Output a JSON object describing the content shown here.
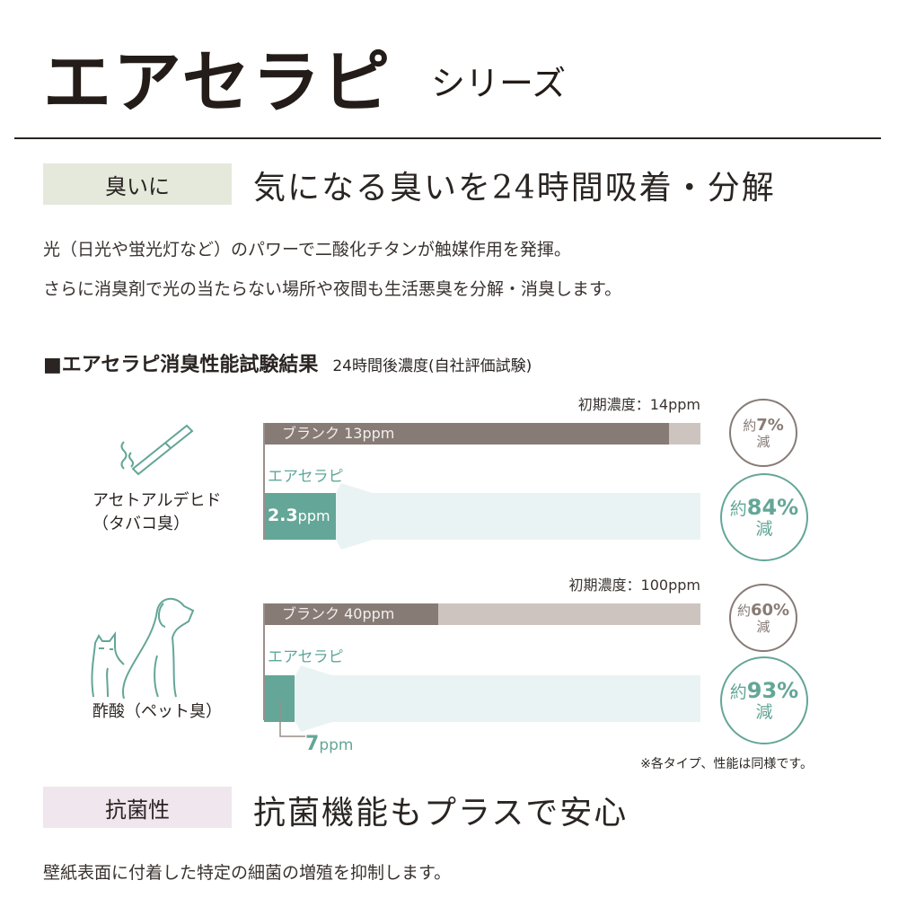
{
  "header": {
    "title": "エアセラピ",
    "subtitle": "シリーズ"
  },
  "odor": {
    "tag": "臭いに",
    "heading": "気になる臭いを24時間吸着・分解",
    "lines": [
      "光（日光や蛍光灯など）のパワーで二酸化チタンが触媒作用を発揮。",
      "さらに消臭剤で光の当たらない場所や夜間も生活悪臭を分解・消臭します。"
    ]
  },
  "test": {
    "title": "■エアセラピ消臭性能試験結果",
    "subtitle": "24時間後濃度(自社評価試験)",
    "note": "※各タイプ、性能は同様です。"
  },
  "chart_data": [
    {
      "type": "bar",
      "category": "アセトアルデヒド",
      "category_sub": "（タバコ臭）",
      "icon": "cigarette-icon",
      "initial_label": "初期濃度：14ppm",
      "initial": 14,
      "series": [
        {
          "name": "ブランク",
          "value": 13,
          "label": "ブランク 13ppm",
          "reduction_prefix": "約",
          "reduction_value": "7%",
          "reduction_suffix": "減"
        },
        {
          "name": "エアセラピ",
          "value": 2.3,
          "label": "2.3",
          "unit": "ppm",
          "reduction_prefix": "約",
          "reduction_value": "84%",
          "reduction_suffix": "減"
        }
      ]
    },
    {
      "type": "bar",
      "category": "酢酸",
      "category_sub": "（ペット臭）",
      "icon": "dog-cat-icon",
      "initial_label": "初期濃度：100ppm",
      "initial": 100,
      "series": [
        {
          "name": "ブランク",
          "value": 40,
          "label": "ブランク 40ppm",
          "reduction_prefix": "約",
          "reduction_value": "60%",
          "reduction_suffix": "減"
        },
        {
          "name": "エアセラピ",
          "value": 7,
          "label": "7",
          "unit": "ppm",
          "reduction_prefix": "約",
          "reduction_value": "93%",
          "reduction_suffix": "減"
        }
      ]
    }
  ],
  "antibac": {
    "tag": "抗菌性",
    "heading": "抗菌機能もプラスで安心",
    "line": "壁紙表面に付着した特定の細菌の増殖を抑制します。"
  },
  "colors": {
    "blank": "#877b76",
    "blank_bg": "#cdc4c0",
    "product": "#64a697",
    "arrow": "#eaf3f4",
    "tag_odor": "#e4e9dc",
    "tag_antibac": "#efe6ee"
  }
}
